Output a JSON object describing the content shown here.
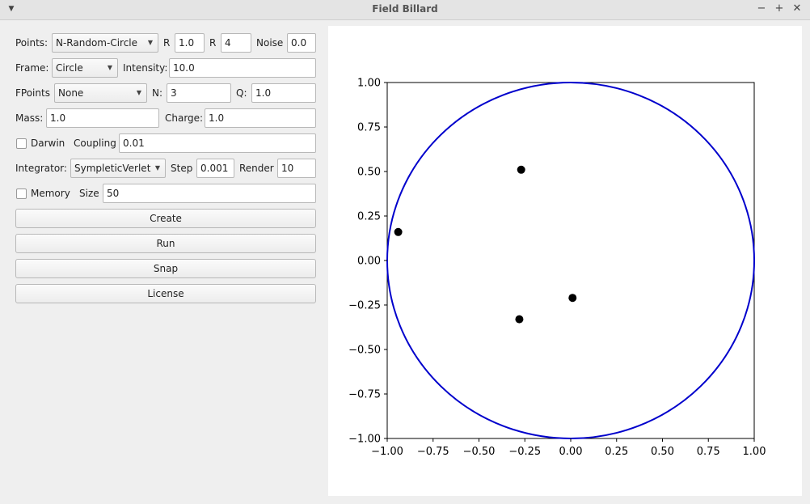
{
  "window": {
    "title": "Field Billard"
  },
  "controls": {
    "points_label": "Points:",
    "points_value": "N-Random-Circle",
    "r1_label": "R",
    "r1_value": "1.0",
    "r2_label": "R",
    "r2_value": "4",
    "noise_label": "Noise",
    "noise_value": "0.0",
    "frame_label": "Frame:",
    "frame_value": "Circle",
    "intensity_label": "Intensity:",
    "intensity_value": "10.0",
    "fpoints_label": "FPoints",
    "fpoints_value": "None",
    "n_label": "N:",
    "n_value": "3",
    "q_label": "Q:",
    "q_value": "1.0",
    "mass_label": "Mass:",
    "mass_value": "1.0",
    "charge_label": "Charge:",
    "charge_value": "1.0",
    "darwin_label": "Darwin",
    "darwin_checked": false,
    "coupling_label": "Coupling",
    "coupling_value": "0.01",
    "integrator_label": "Integrator:",
    "integrator_value": "SympleticVerlet",
    "step_label": "Step",
    "step_value": "0.001",
    "render_label": "Render",
    "render_value": "10",
    "memory_label": "Memory",
    "memory_checked": false,
    "size_label": "Size",
    "size_value": "50"
  },
  "buttons": {
    "create": "Create",
    "run": "Run",
    "snap": "Snap",
    "license": "License"
  },
  "icons": {
    "window_menu": "chevron-down-icon",
    "minimize": "minimize-icon",
    "maximize": "maximize-icon",
    "close": "close-icon",
    "combo_arrow": "chevron-down-icon"
  },
  "chart_data": {
    "type": "scatter",
    "xlim": [
      -1.0,
      1.0
    ],
    "ylim": [
      -1.0,
      1.0
    ],
    "xticks": [
      -1.0,
      -0.75,
      -0.5,
      -0.25,
      0.0,
      0.25,
      0.5,
      0.75,
      1.0
    ],
    "yticks": [
      -1.0,
      -0.75,
      -0.5,
      -0.25,
      0.0,
      0.25,
      0.5,
      0.75,
      1.0
    ],
    "xtick_labels": [
      "−1.00",
      "−0.75",
      "−0.50",
      "−0.25",
      "0.00",
      "0.25",
      "0.50",
      "0.75",
      "1.00"
    ],
    "ytick_labels": [
      "−1.00",
      "−0.75",
      "−0.50",
      "−0.25",
      "0.00",
      "0.25",
      "0.50",
      "0.75",
      "1.00"
    ],
    "grid": false,
    "frame": {
      "shape": "circle",
      "center": [
        0.0,
        0.0
      ],
      "radius": 1.0,
      "color": "#0000cc"
    },
    "points": [
      {
        "x": -0.27,
        "y": 0.51
      },
      {
        "x": -0.94,
        "y": 0.16
      },
      {
        "x": 0.01,
        "y": -0.21
      },
      {
        "x": -0.28,
        "y": -0.33
      }
    ],
    "point_color": "#000000"
  }
}
